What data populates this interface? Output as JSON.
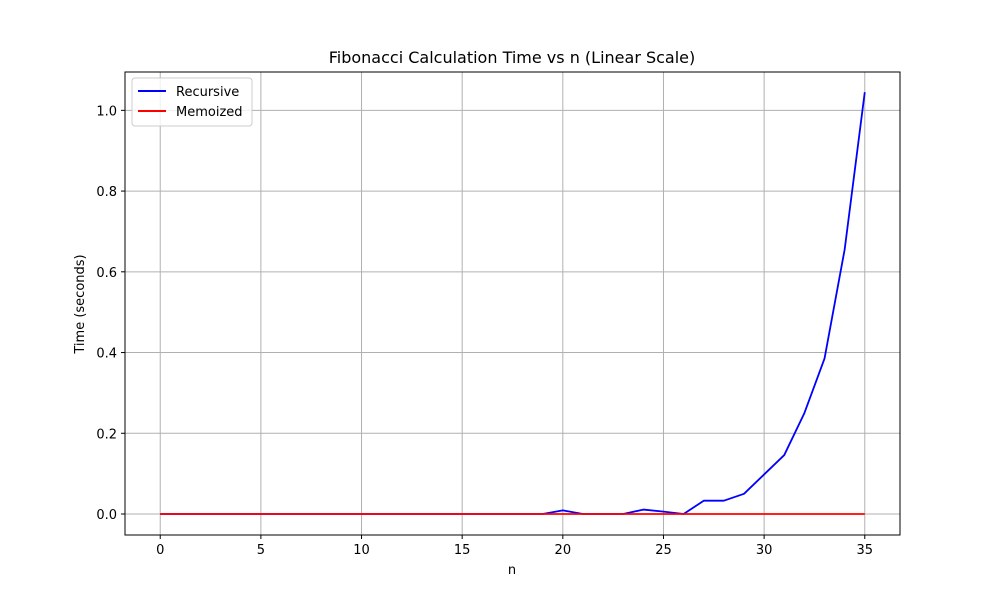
{
  "chart_data": {
    "type": "line",
    "title": "Fibonacci Calculation Time vs n (Linear Scale)",
    "xlabel": "n",
    "ylabel": "Time (seconds)",
    "xlim": [
      -1.75,
      36.75
    ],
    "ylim": [
      -0.052,
      1.095
    ],
    "xticks": [
      0,
      5,
      10,
      15,
      20,
      25,
      30,
      35
    ],
    "yticks": [
      0.0,
      0.2,
      0.4,
      0.6,
      0.8,
      1.0
    ],
    "xtick_labels": [
      "0",
      "5",
      "10",
      "15",
      "20",
      "25",
      "30",
      "35"
    ],
    "ytick_labels": [
      "0.0",
      "0.2",
      "0.4",
      "0.6",
      "0.8",
      "1.0"
    ],
    "grid": true,
    "legend_position": "upper-left",
    "x": [
      0,
      1,
      2,
      3,
      4,
      5,
      6,
      7,
      8,
      9,
      10,
      11,
      12,
      13,
      14,
      15,
      16,
      17,
      18,
      19,
      20,
      21,
      22,
      23,
      24,
      25,
      26,
      27,
      28,
      29,
      30,
      31,
      32,
      33,
      34,
      35
    ],
    "series": [
      {
        "name": "Recursive",
        "color": "#0000ff",
        "values": [
          0,
          0,
          0,
          0,
          0,
          0,
          0,
          0,
          0,
          0,
          0,
          0,
          0,
          0,
          0,
          0,
          0,
          0,
          0,
          0,
          0.009,
          0,
          0,
          0,
          0.011,
          0.006,
          0,
          0.033,
          0.033,
          0.05,
          0.098,
          0.146,
          0.25,
          0.385,
          0.655,
          1.045
        ]
      },
      {
        "name": "Memoized",
        "color": "#ff0000",
        "values": [
          0,
          0,
          0,
          0,
          0,
          0,
          0,
          0,
          0,
          0,
          0,
          0,
          0,
          0,
          0,
          0,
          0,
          0,
          0,
          0,
          0,
          0,
          0,
          0,
          0,
          0,
          0,
          0,
          0,
          0,
          0,
          0,
          0,
          0,
          0,
          0
        ]
      }
    ]
  }
}
